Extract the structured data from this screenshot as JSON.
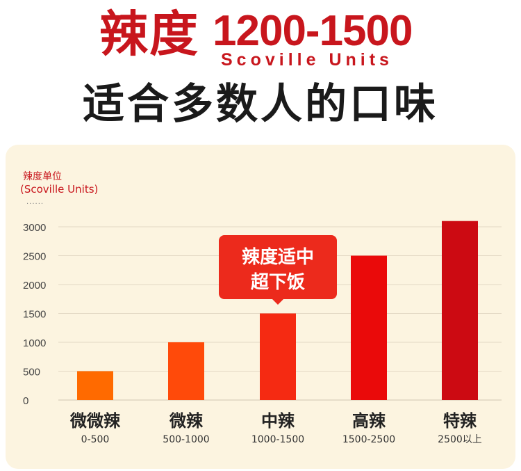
{
  "header": {
    "title_cn": "辣度",
    "title_range": "1200-1500",
    "title_unit": "Scoville Units",
    "subtitle": "适合多数人的口味"
  },
  "chart_data": {
    "type": "bar",
    "ylabel_line1": "辣度单位",
    "ylabel_line2": "(Scoville Units)",
    "ylabel_dots": "......",
    "ylim": [
      0,
      3000
    ],
    "yticks": [
      0,
      500,
      1000,
      1500,
      2000,
      2500,
      3000
    ],
    "grid": true,
    "categories": [
      "微微辣",
      "微辣",
      "中辣",
      "高辣",
      "特辣"
    ],
    "ranges": [
      "0-500",
      "500-1000",
      "1000-1500",
      "1500-2500",
      "2500以上"
    ],
    "values": [
      500,
      1000,
      1500,
      2500,
      3100
    ],
    "colors": [
      "#ff6a00",
      "#ff4a0a",
      "#f52a12",
      "#ea0a0a",
      "#cc0a12"
    ],
    "callout": {
      "category": "中辣",
      "line1": "辣度适中",
      "line2": "超下饭",
      "color": "#ec2a1c"
    }
  }
}
